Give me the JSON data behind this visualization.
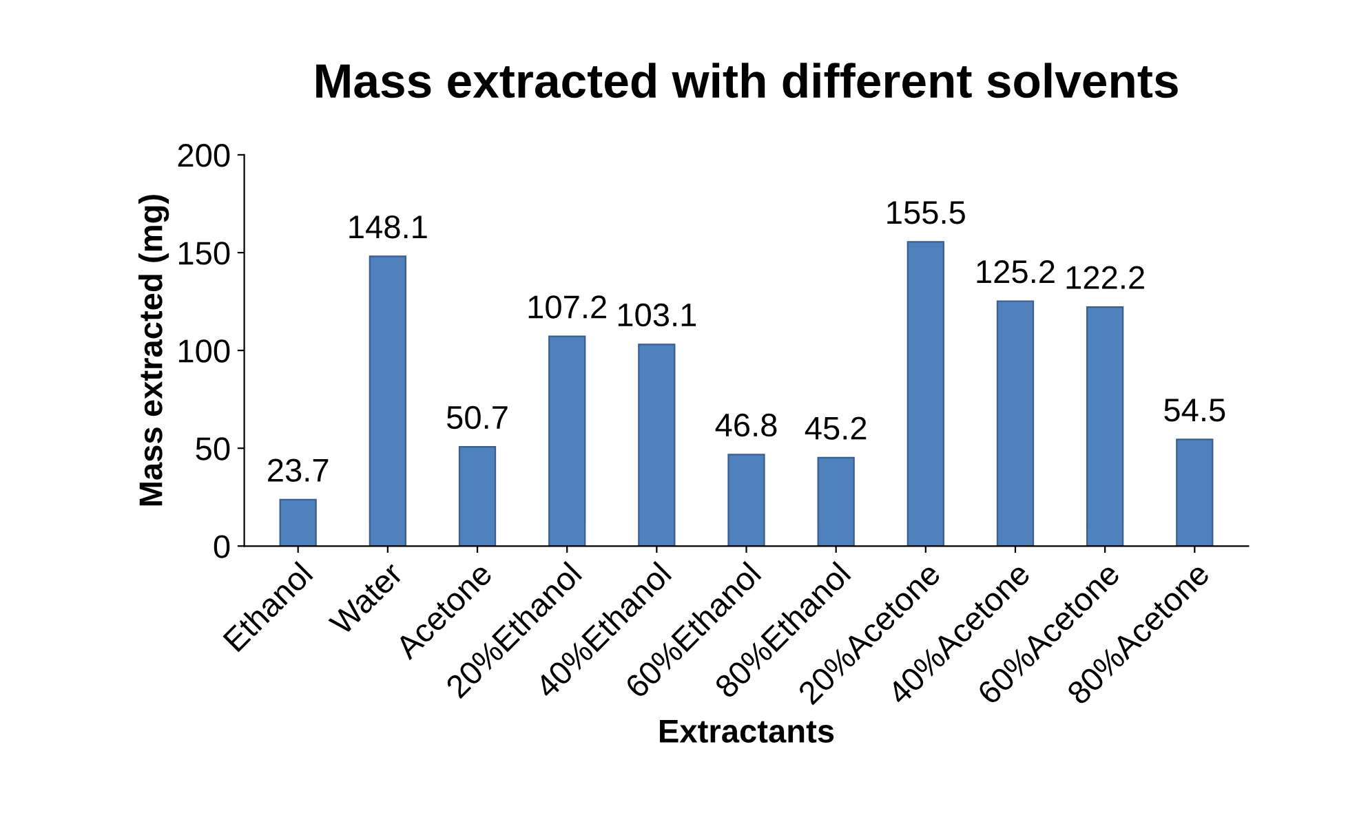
{
  "chart_data": {
    "type": "bar",
    "title": "Mass extracted with different solvents",
    "xlabel": "Extractants",
    "ylabel": "Mass extracted (mg)",
    "categories": [
      "Ethanol",
      "Water",
      "Acetone",
      "20%Ethanol",
      "40%Ethanol",
      "60%Ethanol",
      "80%Ethanol",
      "20%Acetone",
      "40%Acetone",
      "60%Acetone",
      "80%Acetone"
    ],
    "values": [
      23.7,
      148.1,
      50.7,
      107.2,
      103.1,
      46.8,
      45.2,
      155.5,
      125.2,
      122.2,
      54.5
    ],
    "color": "#4f81bd",
    "ylim": [
      0,
      200
    ],
    "yticks": [
      0,
      50,
      100,
      150,
      200
    ],
    "grid": false,
    "data_labels": true
  }
}
